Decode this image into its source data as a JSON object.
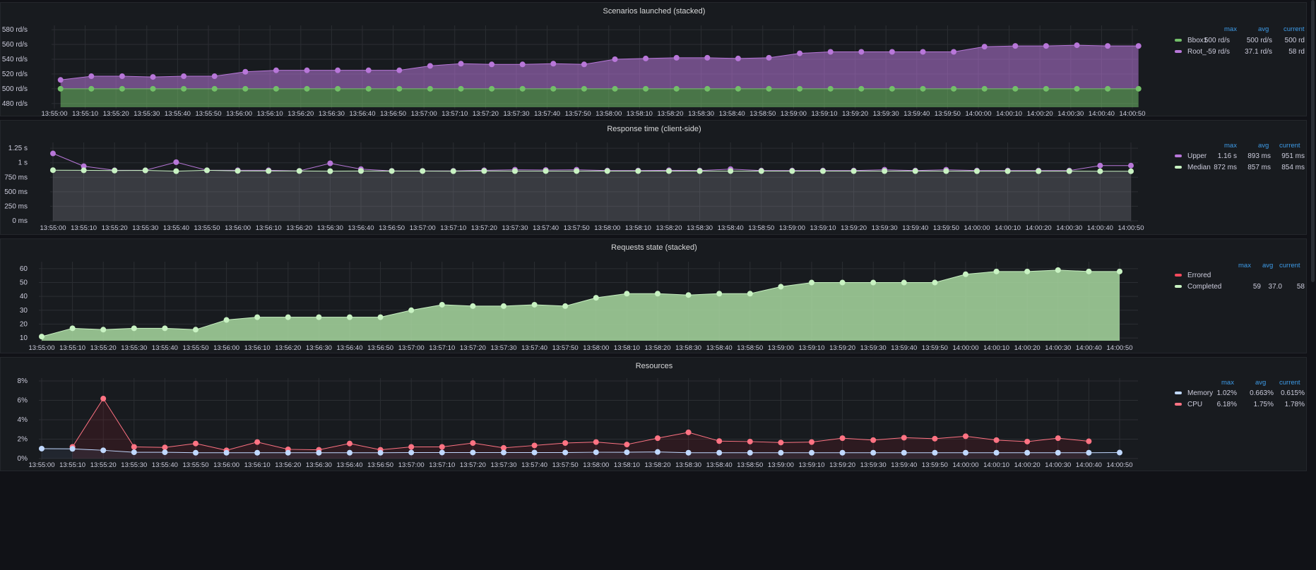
{
  "colors": {
    "purple": "#b877d9",
    "green": "#73bf69",
    "lightgreen": "#c8f2c2",
    "red": "#f2495c",
    "pink": "#ff7383",
    "memory": "#c0d8ff",
    "grid": "#2b2e33",
    "axis_text": "#ccccdc",
    "legend_header": "#3d9be8"
  },
  "time_labels": [
    "13:55:00",
    "13:55:10",
    "13:55:20",
    "13:55:30",
    "13:55:40",
    "13:55:50",
    "13:56:00",
    "13:56:10",
    "13:56:20",
    "13:56:30",
    "13:56:40",
    "13:56:50",
    "13:57:00",
    "13:57:10",
    "13:57:20",
    "13:57:30",
    "13:57:40",
    "13:57:50",
    "13:58:00",
    "13:58:10",
    "13:58:20",
    "13:58:30",
    "13:58:40",
    "13:58:50",
    "13:59:00",
    "13:59:10",
    "13:59:20",
    "13:59:30",
    "13:59:40",
    "13:59:50",
    "14:00:00",
    "14:00:10",
    "14:00:20",
    "14:00:30",
    "14:00:40",
    "14:00:50"
  ],
  "panels": [
    {
      "title": "Scenarios launched (stacked)",
      "legend_headers": [
        "max",
        "avg",
        "current"
      ],
      "legend": [
        {
          "name": "Bbox1",
          "color": "#73bf69",
          "max": "500 rd/s",
          "avg": "500 rd/s",
          "current": "500 rd"
        },
        {
          "name": "Root_-",
          "color": "#b877d9",
          "max": "59 rd/s",
          "avg": "37.1 rd/s",
          "current": "58 rd"
        }
      ],
      "y_ticks": [
        "480 rd/s",
        "500 rd/s",
        "520 rd/s",
        "540 rd/s",
        "560 rd/s",
        "580 rd/s"
      ]
    },
    {
      "title": "Response time (client-side)",
      "legend_headers": [
        "max",
        "avg",
        "current"
      ],
      "legend": [
        {
          "name": "Upper",
          "color": "#b877d9",
          "max": "1.16 s",
          "avg": "893 ms",
          "current": "951 ms"
        },
        {
          "name": "Median",
          "color": "#c8f2c2",
          "max": "872 ms",
          "avg": "857 ms",
          "current": "854 ms"
        }
      ],
      "y_ticks": [
        "0 ms",
        "250 ms",
        "500 ms",
        "750 ms",
        "1 s",
        "1.25 s"
      ]
    },
    {
      "title": "Requests state (stacked)",
      "legend_headers": [
        "max",
        "avg",
        "current"
      ],
      "legend": [
        {
          "name": "Errored",
          "color": "#f2495c",
          "max": "",
          "avg": "",
          "current": ""
        },
        {
          "name": "Completed",
          "color": "#c8f2c2",
          "max": "59",
          "avg": "37.0",
          "current": "58"
        }
      ],
      "y_ticks": [
        "10",
        "20",
        "30",
        "40",
        "50",
        "60"
      ]
    },
    {
      "title": "Resources",
      "legend_headers": [
        "max",
        "avg",
        "current"
      ],
      "legend": [
        {
          "name": "Memory",
          "color": "#c0d8ff",
          "max": "1.02%",
          "avg": "0.663%",
          "current": "0.615%"
        },
        {
          "name": "CPU",
          "color": "#ff7383",
          "max": "6.18%",
          "avg": "1.75%",
          "current": "1.78%"
        }
      ],
      "y_ticks": [
        "0%",
        "2%",
        "4%",
        "6%",
        "8%"
      ]
    }
  ],
  "chart_data": [
    {
      "type": "area",
      "title": "Scenarios launched (stacked)",
      "ylim": [
        475,
        582
      ],
      "stacked": true,
      "x": [
        "13:55:02",
        "13:55:12",
        "13:55:22",
        "13:55:32",
        "13:55:42",
        "13:55:52",
        "13:56:02",
        "13:56:12",
        "13:56:22",
        "13:56:32",
        "13:56:42",
        "13:56:52",
        "13:57:02",
        "13:57:12",
        "13:57:22",
        "13:57:32",
        "13:57:42",
        "13:57:52",
        "13:58:02",
        "13:58:12",
        "13:58:22",
        "13:58:32",
        "13:58:42",
        "13:58:52",
        "13:59:02",
        "13:59:12",
        "13:59:22",
        "13:59:32",
        "13:59:42",
        "13:59:52",
        "14:00:02",
        "14:00:12",
        "14:00:22",
        "14:00:32",
        "14:00:42",
        "14:00:52"
      ],
      "series": [
        {
          "name": "Bbox1",
          "values": [
            500,
            500,
            500,
            500,
            500,
            500,
            500,
            500,
            500,
            500,
            500,
            500,
            500,
            500,
            500,
            500,
            500,
            500,
            500,
            500,
            500,
            500,
            500,
            500,
            500,
            500,
            500,
            500,
            500,
            500,
            500,
            500,
            500,
            500,
            500,
            500
          ]
        },
        {
          "name": "Root_-",
          "stacked_totals": [
            512,
            517,
            517,
            516,
            517,
            517,
            523,
            525,
            525,
            525,
            525,
            525,
            531,
            534,
            533,
            533,
            534,
            533,
            540,
            541,
            542,
            542,
            541,
            542,
            548,
            550,
            550,
            550,
            550,
            550,
            557,
            558,
            558,
            559,
            558,
            558
          ]
        }
      ]
    },
    {
      "type": "line",
      "title": "Response time (client-side)",
      "ylim": [
        0,
        1300
      ],
      "x": [
        "13:55:00",
        "13:55:10",
        "13:55:20",
        "13:55:30",
        "13:55:40",
        "13:55:50",
        "13:56:00",
        "13:56:10",
        "13:56:20",
        "13:56:30",
        "13:56:40",
        "13:56:50",
        "13:57:00",
        "13:57:10",
        "13:57:20",
        "13:57:30",
        "13:57:40",
        "13:57:50",
        "13:58:00",
        "13:58:10",
        "13:58:20",
        "13:58:30",
        "13:58:40",
        "13:58:50",
        "13:59:00",
        "13:59:10",
        "13:59:20",
        "13:59:30",
        "13:59:40",
        "13:59:50",
        "14:00:00",
        "14:00:10",
        "14:00:20",
        "14:00:30",
        "14:00:40",
        "14:00:50"
      ],
      "series": [
        {
          "name": "Upper",
          "values": [
            1160,
            940,
            870,
            870,
            1010,
            870,
            870,
            870,
            860,
            990,
            890,
            860,
            860,
            860,
            870,
            880,
            875,
            880,
            865,
            865,
            870,
            865,
            890,
            865,
            865,
            865,
            865,
            880,
            865,
            880,
            865,
            865,
            865,
            865,
            951,
            951
          ]
        },
        {
          "name": "Median",
          "values": [
            872,
            870,
            865,
            868,
            855,
            870,
            860,
            858,
            858,
            855,
            858,
            857,
            857,
            855,
            858,
            856,
            857,
            857,
            857,
            857,
            857,
            856,
            857,
            856,
            856,
            856,
            856,
            856,
            856,
            856,
            855,
            855,
            855,
            855,
            854,
            854
          ]
        }
      ]
    },
    {
      "type": "area",
      "title": "Requests state (stacked)",
      "ylim": [
        8,
        63
      ],
      "x": [
        "13:55:00",
        "13:55:10",
        "13:55:20",
        "13:55:30",
        "13:55:40",
        "13:55:50",
        "13:56:00",
        "13:56:10",
        "13:56:20",
        "13:56:30",
        "13:56:40",
        "13:56:50",
        "13:57:00",
        "13:57:10",
        "13:57:20",
        "13:57:30",
        "13:57:40",
        "13:57:50",
        "13:58:00",
        "13:58:10",
        "13:58:20",
        "13:58:30",
        "13:58:40",
        "13:58:50",
        "13:59:00",
        "13:59:10",
        "13:59:20",
        "13:59:30",
        "13:59:40",
        "13:59:50",
        "14:00:00",
        "14:00:10",
        "14:00:20",
        "14:00:30",
        "14:00:40",
        "14:00:50"
      ],
      "series": [
        {
          "name": "Completed",
          "values": [
            11,
            17,
            16,
            17,
            17,
            16,
            23,
            25,
            25,
            25,
            25,
            25,
            30,
            34,
            33,
            33,
            34,
            33,
            39,
            42,
            42,
            41,
            42,
            42,
            47,
            50,
            50,
            50,
            50,
            50,
            56,
            58,
            58,
            59,
            58,
            58
          ]
        }
      ]
    },
    {
      "type": "line",
      "title": "Resources",
      "ylim": [
        0,
        8
      ],
      "x": [
        "13:55:00",
        "13:55:10",
        "13:55:20",
        "13:55:30",
        "13:55:40",
        "13:55:50",
        "13:56:00",
        "13:56:10",
        "13:56:20",
        "13:56:30",
        "13:56:40",
        "13:56:50",
        "13:57:00",
        "13:57:10",
        "13:57:20",
        "13:57:30",
        "13:57:40",
        "13:57:50",
        "13:58:00",
        "13:58:10",
        "13:58:20",
        "13:58:30",
        "13:58:40",
        "13:58:50",
        "13:59:00",
        "13:59:10",
        "13:59:20",
        "13:59:30",
        "13:59:40",
        "13:59:50",
        "14:00:00",
        "14:00:10",
        "14:00:20",
        "14:00:30",
        "14:00:40",
        "14:00:50"
      ],
      "series": [
        {
          "name": "Memory",
          "values": [
            1.02,
            1.0,
            0.85,
            0.65,
            0.65,
            0.6,
            0.6,
            0.6,
            0.6,
            0.6,
            0.6,
            0.6,
            0.62,
            0.62,
            0.62,
            0.62,
            0.62,
            0.62,
            0.65,
            0.65,
            0.68,
            0.6,
            0.6,
            0.6,
            0.6,
            0.6,
            0.6,
            0.6,
            0.6,
            0.6,
            0.6,
            0.6,
            0.6,
            0.6,
            0.6,
            0.615
          ]
        },
        {
          "name": "CPU",
          "values": [
            null,
            1.2,
            6.18,
            1.2,
            1.15,
            1.55,
            0.85,
            1.7,
            0.95,
            0.9,
            1.55,
            0.9,
            1.2,
            1.2,
            1.6,
            1.1,
            1.35,
            1.6,
            1.7,
            1.45,
            2.1,
            2.7,
            1.8,
            1.75,
            1.65,
            1.7,
            2.1,
            1.9,
            2.15,
            2.05,
            2.3,
            1.9,
            1.75,
            2.1,
            1.78,
            null
          ]
        }
      ]
    }
  ]
}
